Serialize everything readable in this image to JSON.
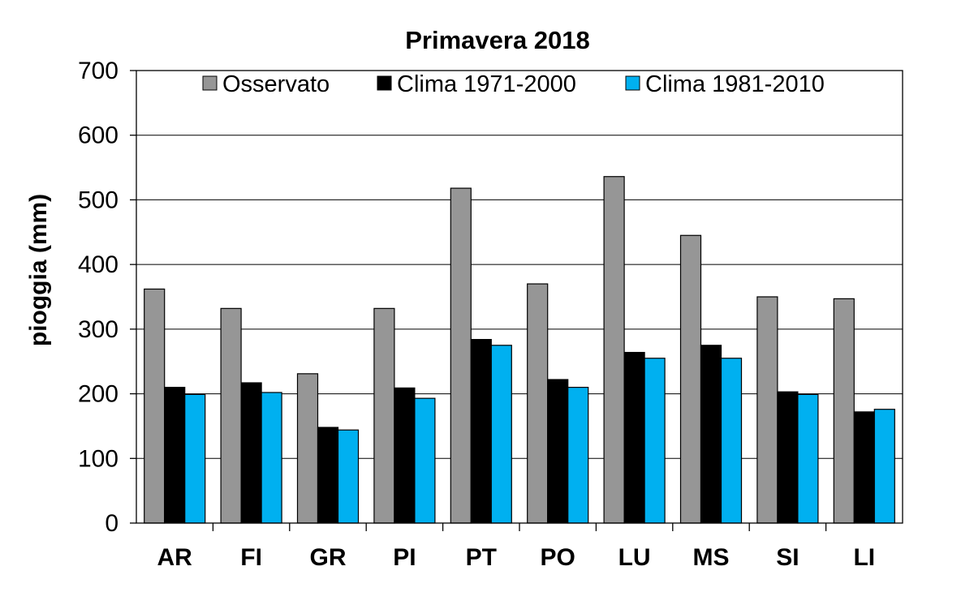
{
  "chart_data": {
    "type": "bar",
    "title": "Primavera 2018",
    "xlabel": "",
    "ylabel": "pioggia  (mm)",
    "ylim": [
      0,
      700
    ],
    "yticks": [
      0,
      100,
      200,
      300,
      400,
      500,
      600,
      700
    ],
    "grid": true,
    "legend_position": "top",
    "categories": [
      "AR",
      "FI",
      "GR",
      "PI",
      "PT",
      "PO",
      "LU",
      "MS",
      "SI",
      "LI"
    ],
    "series": [
      {
        "name": "Osservato",
        "color": "#969696",
        "values": [
          362,
          332,
          231,
          332,
          518,
          370,
          536,
          445,
          350,
          347
        ]
      },
      {
        "name": "Clima 1971-2000",
        "color": "#000000",
        "values": [
          210,
          217,
          148,
          209,
          284,
          222,
          264,
          275,
          203,
          172
        ]
      },
      {
        "name": "Clima 1981-2010",
        "color": "#00b0f0",
        "values": [
          199,
          202,
          144,
          193,
          275,
          210,
          255,
          255,
          199,
          176
        ]
      }
    ]
  }
}
